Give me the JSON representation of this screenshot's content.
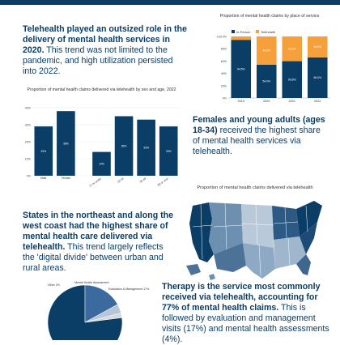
{
  "section1": {
    "bold": "Telehealth played an outsized role in the delivery of mental health services in 2020.",
    "rest": "This trend was not limited to the pandemic, and high utilization persisted into 2022."
  },
  "section2": {
    "bold": "Females and young adults (ages 18-34)",
    "rest": "received the highest share of mental health services via telehealth."
  },
  "section3": {
    "bold": "States in the northeast and along the west coast had the highest share of mental health care delivered via telehealth.",
    "rest": "This trend largely reflects the 'digital divide' between urban and rural areas."
  },
  "section4": {
    "bold": "Therapy is the service most commonly received via telehealth, accounting for 77% of mental health claims.",
    "rest": "This is followed by evaluation and management visits (17%) and mental health assessments (4%)."
  },
  "colors": {
    "navy": "#0b3e66",
    "orange": "#f6a03c",
    "bg": "#ffffff"
  },
  "chart_data": [
    {
      "type": "bar",
      "title": "Proportion of mental health claims by place of service",
      "categories": [
        "2019",
        "2020",
        "2021",
        "2022"
      ],
      "series": [
        {
          "name": "In-Person",
          "values": [
            94.5,
            54.0,
            59.8,
            66.0
          ]
        },
        {
          "name": "Telehealth",
          "values": [
            5.5,
            46.0,
            40.2,
            34.0
          ]
        }
      ],
      "data_labels": {
        "In-Person": [
          "94.5%",
          "54.0%",
          "59.8%",
          "66.0%"
        ],
        "Telehealth": [
          "",
          "46.0%",
          "40.2%",
          "34.0%"
        ]
      },
      "yticks": [
        "0%",
        "20%",
        "40%",
        "60%",
        "80%",
        "100.0%"
      ],
      "ylim": [
        0,
        100
      ],
      "legend": "top"
    },
    {
      "type": "bar",
      "title": "Proportion of mental health claims delivered via telehealth by sex and age, 2022",
      "categories": [
        "Male",
        "Female",
        "17 or under",
        "18-34",
        "35-49",
        "50 or over"
      ],
      "values": [
        29,
        38,
        14,
        35,
        33,
        29
      ],
      "data_labels": [
        "29%",
        "38%",
        "14%",
        "35%",
        "33%",
        "29%"
      ],
      "yticks": [
        "0%",
        "10%",
        "20%",
        "30%",
        "40%"
      ],
      "ylim": [
        0,
        40
      ],
      "grid": true
    },
    {
      "type": "map",
      "title": "Proportion of mental health claims delivered via telehealth"
    },
    {
      "type": "pie",
      "labels": [
        "Therapy",
        "Evaluation & Management",
        "Mental Health Assessment",
        "Other"
      ],
      "values": [
        77,
        17,
        4,
        2
      ],
      "slice_labels": [
        "",
        "Evaluation & Management 17%",
        "Mental Health Assessment",
        "Other 2%"
      ]
    }
  ]
}
